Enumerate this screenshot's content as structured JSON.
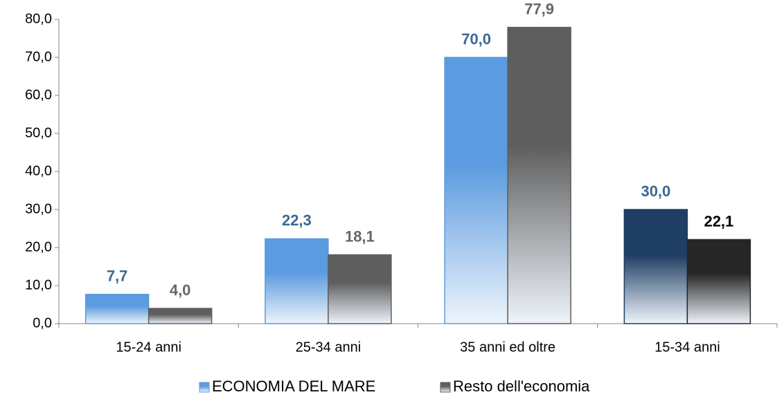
{
  "chart_data": {
    "type": "bar",
    "categories": [
      "15-24 anni",
      "25-34 anni",
      "35 anni ed oltre",
      "15-34 anni"
    ],
    "series": [
      {
        "name": "ECONOMIA DEL MARE",
        "color": "#5b9bdf",
        "colors": [
          "#5b9bdf",
          "#5b9bdf",
          "#5b9bdf",
          "#1f3e63"
        ],
        "values": [
          7.7,
          22.3,
          70.0,
          30.0
        ],
        "value_labels": [
          "7,7",
          "22,3",
          "70,0",
          "30,0"
        ],
        "label_colors": [
          "#3d6796",
          "#3d6796",
          "#3d6796",
          "#3d6796"
        ]
      },
      {
        "name": "Resto dell'economia",
        "color": "#5e5e5e",
        "colors": [
          "#5e5e5e",
          "#5e5e5e",
          "#5e5e5e",
          "#262626"
        ],
        "values": [
          4.0,
          18.1,
          77.9,
          22.1
        ],
        "value_labels": [
          "4,0",
          "18,1",
          "77,9",
          "22,1"
        ],
        "label_colors": [
          "#666666",
          "#666666",
          "#666666",
          "#000000"
        ]
      }
    ],
    "ylim": [
      0,
      80
    ],
    "yticks": [
      {
        "value": 0,
        "label": "0,0"
      },
      {
        "value": 10,
        "label": "10,0"
      },
      {
        "value": 20,
        "label": "20,0"
      },
      {
        "value": 30,
        "label": "30,0"
      },
      {
        "value": 40,
        "label": "40,0"
      },
      {
        "value": 50,
        "label": "50,0"
      },
      {
        "value": 60,
        "label": "60,0"
      },
      {
        "value": 70,
        "label": "70,0"
      },
      {
        "value": 80,
        "label": "80,0"
      }
    ],
    "legend": "bottom"
  }
}
